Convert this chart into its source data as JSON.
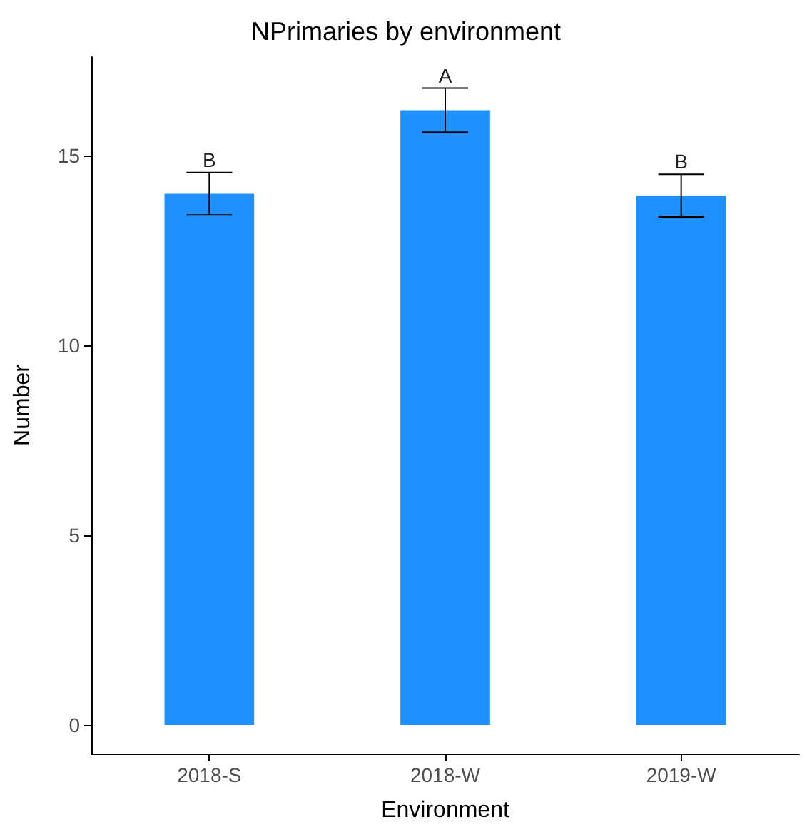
{
  "chart_data": {
    "type": "bar",
    "title": "NPrimaries by environment",
    "xlabel": "Environment",
    "ylabel": "Number",
    "categories": [
      "2018-S",
      "2018-W",
      "2019-W"
    ],
    "values": [
      14.0,
      16.2,
      13.95
    ],
    "errors": [
      0.56,
      0.58,
      0.56
    ],
    "color": "#1e90ff",
    "ylim": [
      -0.75,
      17.6
    ],
    "yticks": [
      0,
      5,
      10,
      15
    ],
    "grid": false,
    "annotations": [
      {
        "text": "B",
        "x": "2018-S",
        "y": 14.56
      },
      {
        "text": "A",
        "x": "2018-W",
        "y": 16.78
      },
      {
        "text": "B",
        "x": "2019-W",
        "y": 14.51
      }
    ]
  }
}
